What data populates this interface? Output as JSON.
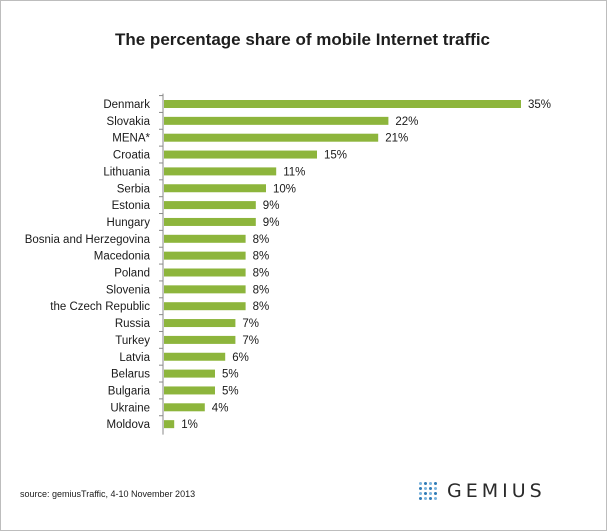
{
  "chart_data": {
    "type": "bar",
    "orientation": "horizontal",
    "title": "The percentage share of mobile Internet traffic",
    "categories": [
      "Denmark",
      "Slovakia",
      "MENA*",
      "Croatia",
      "Lithuania",
      "Serbia",
      "Estonia",
      "Hungary",
      "Bosnia and Herzegovina",
      "Macedonia",
      "Poland",
      "Slovenia",
      "the Czech Republic",
      "Russia",
      "Turkey",
      "Latvia",
      "Belarus",
      "Bulgaria",
      "Ukraine",
      "Moldova"
    ],
    "values": [
      35,
      22,
      21,
      15,
      11,
      10,
      9,
      9,
      8,
      8,
      8,
      8,
      8,
      7,
      7,
      6,
      5,
      5,
      4,
      1
    ],
    "value_labels": [
      "35%",
      "22%",
      "21%",
      "15%",
      "11%",
      "10%",
      "9%",
      "9%",
      "8%",
      "8%",
      "8%",
      "8%",
      "8%",
      "7%",
      "7%",
      "6%",
      "5%",
      "5%",
      "4%",
      "1%"
    ],
    "xlim": [
      0,
      35
    ],
    "grid": false,
    "legend": "none",
    "bar_color": "#8db53c"
  },
  "footer": {
    "source": "source: gemiusTraffic, 4-10 November 2013"
  },
  "logo": {
    "text": "GEMIUS",
    "dot_colors": [
      "#2e7bb6",
      "#7ab4de"
    ]
  }
}
